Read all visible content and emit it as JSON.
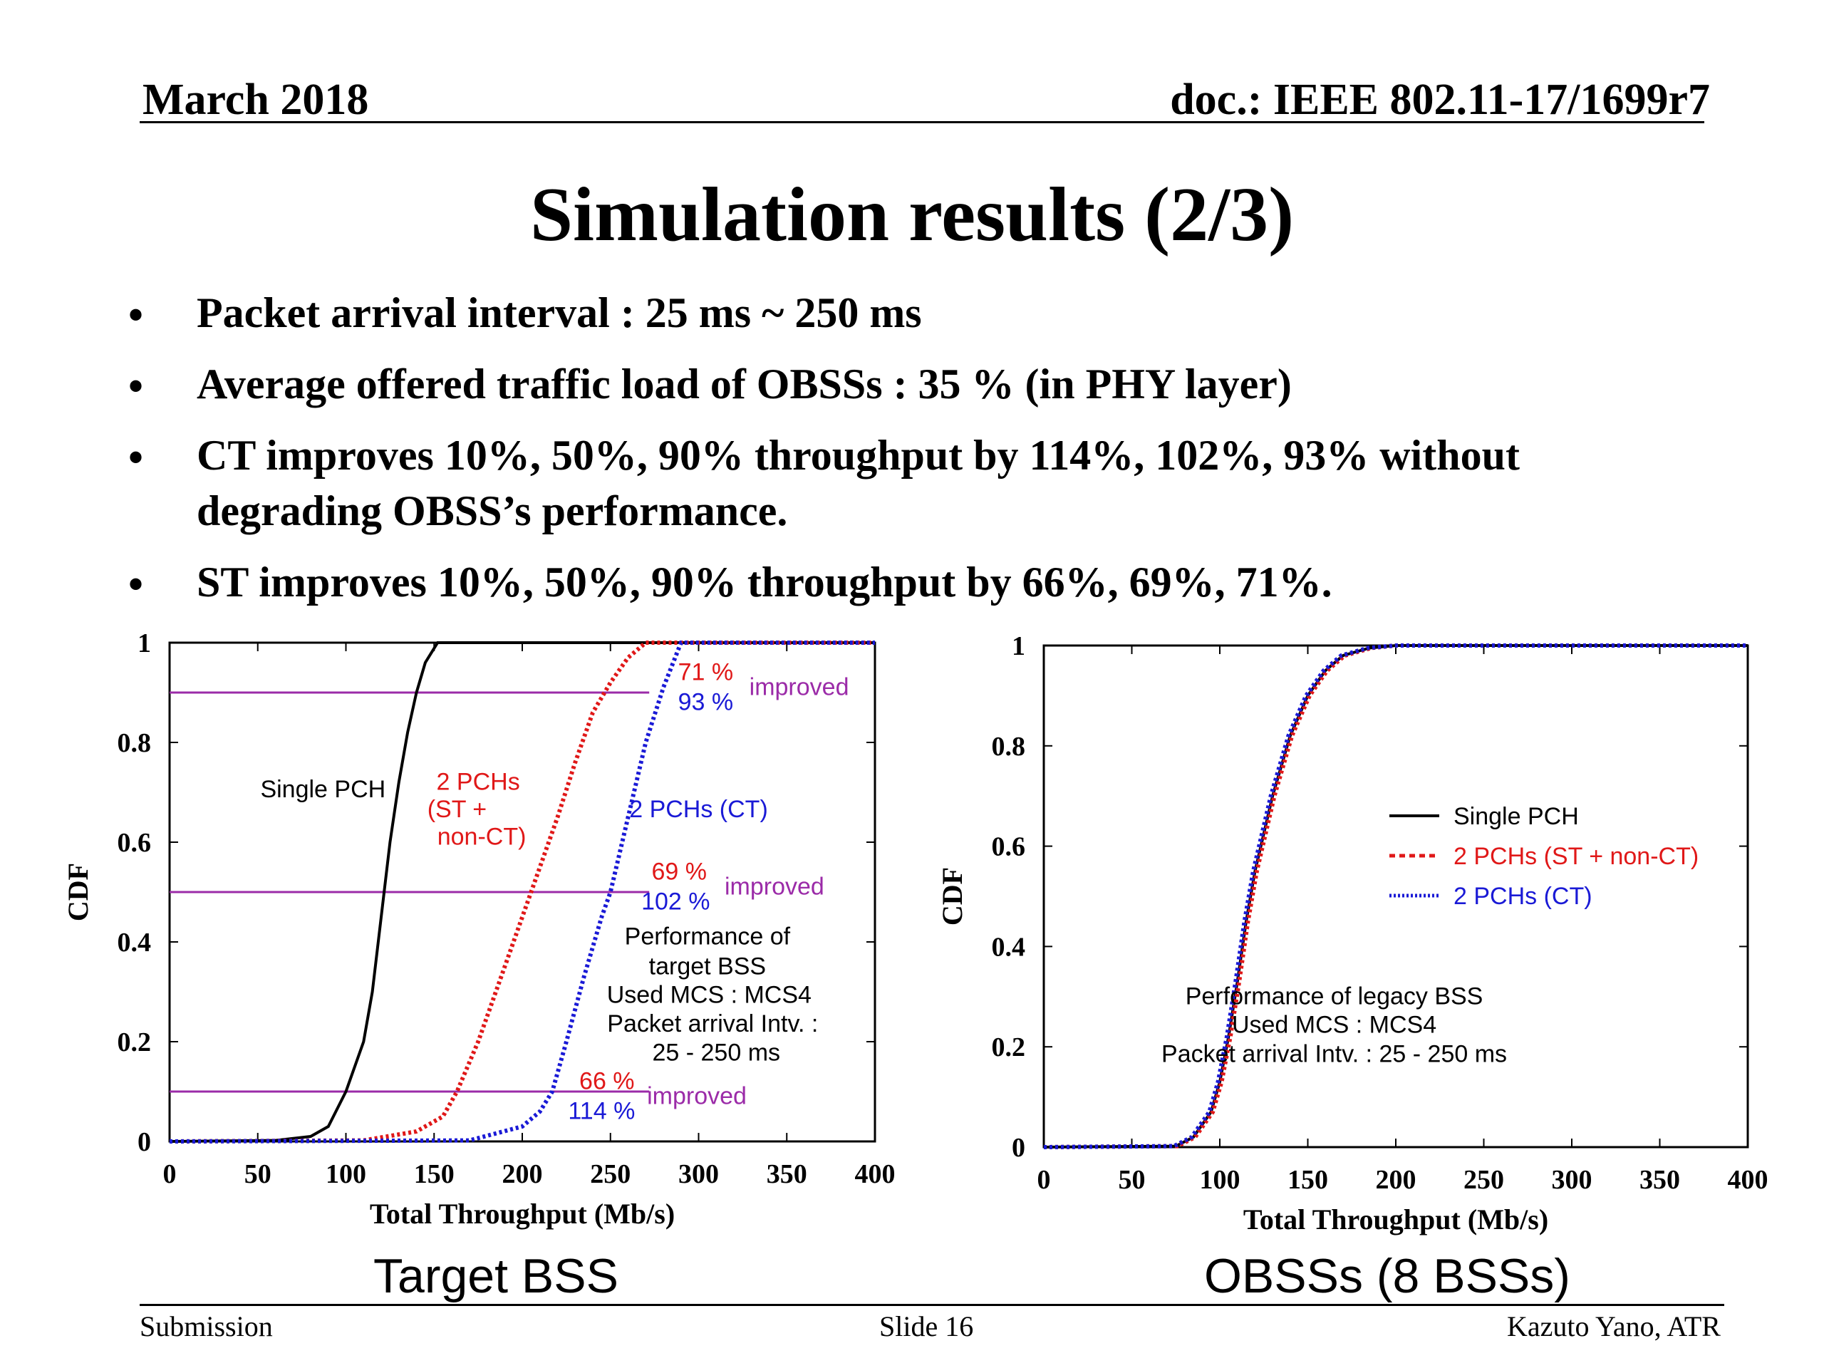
{
  "header": {
    "date": "March 2018",
    "doc": "doc.: IEEE 802.11-17/1699r7"
  },
  "title": "Simulation results (2/3)",
  "bullets": [
    {
      "marker": "•",
      "lines": [
        "Packet arrival interval : 25 ms ~ 250 ms"
      ]
    },
    {
      "marker": "•",
      "lines": [
        "Average offered traffic load of OBSSs : 35 % (in PHY layer)"
      ]
    },
    {
      "marker": "•",
      "lines": [
        "CT improves 10%, 50%, 90% throughput by 114%, 102%, 93% without",
        "degrading OBSS’s performance."
      ]
    },
    {
      "marker": "•",
      "lines": [
        "ST improves 10%, 50%, 90% throughput by 66%, 69%, 71%."
      ]
    }
  ],
  "colors": {
    "single": "#000000",
    "st": "#e01818",
    "ct": "#1a1ad6",
    "improved": "#9b2ba8",
    "reference_line": "#9b2ba8"
  },
  "subtitles": {
    "left": "Target BSS",
    "right": "OBSSs (8 BSSs)"
  },
  "footer": {
    "left": "Submission",
    "center": "Slide 16",
    "right": "Kazuto Yano, ATR"
  },
  "chart_data": [
    {
      "type": "line",
      "xlabel": "Total Throughput (Mb/s)",
      "ylabel": "CDF",
      "xlim": [
        0,
        400
      ],
      "ylim": [
        0,
        1
      ],
      "xticks": [
        "0",
        "50",
        "100",
        "150",
        "200",
        "250",
        "300",
        "350",
        "400"
      ],
      "yticks": [
        "0",
        "0.2",
        "0.4",
        "0.6",
        "0.8",
        "1"
      ],
      "grid": false,
      "reference_lines_y": [
        0.1,
        0.5,
        0.9
      ],
      "series": [
        {
          "style": "solid",
          "color_key": "single",
          "x": [
            0,
            60,
            80,
            90,
            100,
            110,
            115,
            120,
            125,
            130,
            135,
            140,
            145,
            152,
            160,
            400
          ],
          "y": [
            0,
            0.002,
            0.01,
            0.03,
            0.1,
            0.2,
            0.3,
            0.45,
            0.6,
            0.72,
            0.82,
            0.9,
            0.96,
            1.0,
            1.0,
            1.0
          ]
        },
        {
          "style": "dotted",
          "color_key": "st",
          "x": [
            0,
            110,
            140,
            155,
            163,
            175,
            190,
            205,
            220,
            230,
            240,
            250,
            260,
            270,
            400
          ],
          "y": [
            0,
            0.002,
            0.02,
            0.05,
            0.1,
            0.2,
            0.35,
            0.5,
            0.65,
            0.76,
            0.86,
            0.92,
            0.97,
            1.0,
            1.0
          ]
        },
        {
          "style": "dotted",
          "color_key": "ct",
          "x": [
            0,
            170,
            200,
            210,
            217,
            225,
            235,
            245,
            250,
            260,
            270,
            280,
            290,
            400
          ],
          "y": [
            0,
            0.002,
            0.03,
            0.06,
            0.1,
            0.2,
            0.33,
            0.45,
            0.5,
            0.65,
            0.8,
            0.91,
            1.0,
            1.0
          ]
        }
      ],
      "annotations": [
        {
          "text": "Single PCH",
          "color_key": "single",
          "x": 87,
          "y": 0.69
        },
        {
          "text": "2 PCHs",
          "color_key": "st",
          "x": 175,
          "y": 0.705
        },
        {
          "text": "(ST +",
          "color_key": "st",
          "x": 163,
          "y": 0.65
        },
        {
          "text": "non-CT)",
          "color_key": "st",
          "x": 177,
          "y": 0.595
        },
        {
          "text": "2 PCHs (CT)",
          "color_key": "ct",
          "x": 300,
          "y": 0.65
        },
        {
          "text": "71 %",
          "color_key": "st",
          "x": 304,
          "y": 0.925
        },
        {
          "text": "93 %",
          "color_key": "ct",
          "x": 304,
          "y": 0.865
        },
        {
          "text": "improved",
          "color_key": "improved",
          "x": 357,
          "y": 0.895
        },
        {
          "text": "69 %",
          "color_key": "st",
          "x": 289,
          "y": 0.525
        },
        {
          "text": "102 %",
          "color_key": "ct",
          "x": 287,
          "y": 0.465
        },
        {
          "text": "improved",
          "color_key": "improved",
          "x": 343,
          "y": 0.495
        },
        {
          "text": "66 %",
          "color_key": "st",
          "x": 248,
          "y": 0.105
        },
        {
          "text": "114 %",
          "color_key": "ct",
          "x": 245,
          "y": 0.045
        },
        {
          "text": "improved",
          "color_key": "improved",
          "x": 299,
          "y": 0.075
        },
        {
          "text": "Performance of",
          "color_key": "single",
          "x": 305,
          "y": 0.395
        },
        {
          "text": "target BSS",
          "color_key": "single",
          "x": 305,
          "y": 0.335
        },
        {
          "text": "Used MCS : MCS4",
          "color_key": "single",
          "x": 306,
          "y": 0.278
        },
        {
          "text": "Packet arrival Intv. :",
          "color_key": "single",
          "x": 308,
          "y": 0.22
        },
        {
          "text": "25 - 250 ms",
          "color_key": "single",
          "x": 310,
          "y": 0.162
        }
      ]
    },
    {
      "type": "line",
      "xlabel": "Total Throughput (Mb/s)",
      "ylabel": "CDF",
      "xlim": [
        0,
        400
      ],
      "ylim": [
        0,
        1
      ],
      "xticks": [
        "0",
        "50",
        "100",
        "150",
        "200",
        "250",
        "300",
        "350",
        "400"
      ],
      "yticks": [
        "0",
        "0.2",
        "0.4",
        "0.6",
        "0.8",
        "1"
      ],
      "grid": false,
      "legend_position": "center-right",
      "series": [
        {
          "name": "Single PCH",
          "style": "solid",
          "color_key": "single",
          "x": [
            0,
            75,
            85,
            95,
            100,
            105,
            110,
            115,
            120,
            130,
            140,
            150,
            160,
            170,
            185,
            200,
            400
          ],
          "y": [
            0,
            0.002,
            0.02,
            0.07,
            0.13,
            0.22,
            0.33,
            0.45,
            0.55,
            0.7,
            0.82,
            0.9,
            0.95,
            0.98,
            0.995,
            1.0,
            1.0
          ]
        },
        {
          "name": "2 PCHs (ST + non-CT)",
          "style": "dotted",
          "color_key": "st",
          "x": [
            0,
            76,
            86,
            96,
            101,
            106,
            111,
            116,
            121,
            131,
            141,
            151,
            161,
            171,
            186,
            200,
            400
          ],
          "y": [
            0,
            0.002,
            0.02,
            0.07,
            0.13,
            0.22,
            0.33,
            0.45,
            0.55,
            0.7,
            0.82,
            0.9,
            0.95,
            0.98,
            0.995,
            1.0,
            1.0
          ]
        },
        {
          "name": "2 PCHs (CT)",
          "style": "dotted",
          "color_key": "ct",
          "x": [
            0,
            74,
            84,
            94,
            99,
            104,
            109,
            114,
            119,
            129,
            139,
            149,
            159,
            169,
            184,
            200,
            400
          ],
          "y": [
            0,
            0.002,
            0.02,
            0.07,
            0.13,
            0.22,
            0.33,
            0.45,
            0.55,
            0.7,
            0.82,
            0.9,
            0.95,
            0.98,
            0.995,
            1.0,
            1.0
          ]
        }
      ],
      "annotations": [
        {
          "text": "Performance of legacy BSS",
          "color_key": "single",
          "x": 165,
          "y": 0.285
        },
        {
          "text": "Used MCS : MCS4",
          "color_key": "single",
          "x": 165,
          "y": 0.228
        },
        {
          "text": "Packet arrival Intv. : 25 - 250 ms",
          "color_key": "single",
          "x": 165,
          "y": 0.17
        }
      ]
    }
  ]
}
